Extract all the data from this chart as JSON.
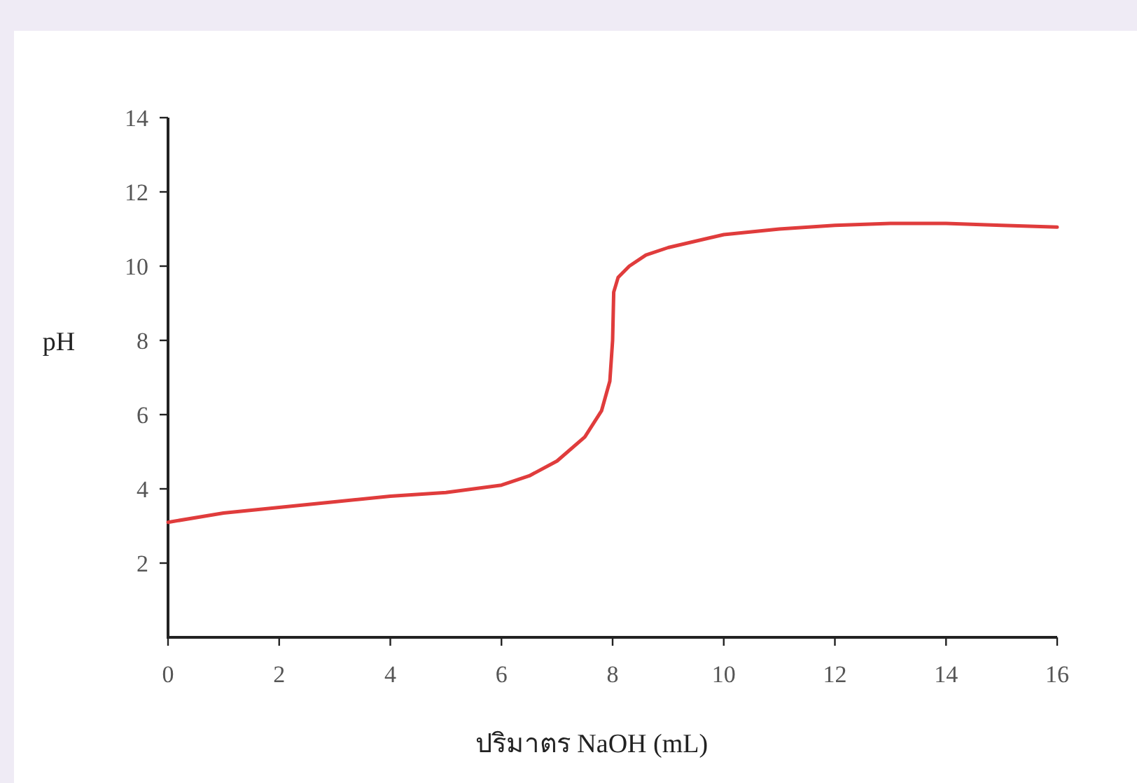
{
  "chart_data": {
    "type": "line",
    "xlabel": "ปริมาตร NaOH (mL)",
    "ylabel": "pH",
    "xlim": [
      0,
      16
    ],
    "ylim": [
      0,
      14
    ],
    "xticks": [
      0,
      2,
      4,
      6,
      8,
      10,
      12,
      14,
      16
    ],
    "yticks": [
      2,
      4,
      6,
      8,
      10,
      12,
      14
    ],
    "grid": false,
    "marker": "none",
    "line_style": "solid",
    "series": [
      {
        "color": "#e03c3c",
        "x": [
          0,
          1,
          2,
          3,
          4,
          5,
          6,
          6.5,
          7,
          7.5,
          7.8,
          7.95,
          8.0,
          8.02,
          8.1,
          8.3,
          8.6,
          9,
          10,
          11,
          12,
          13,
          14,
          15,
          16
        ],
        "values": [
          3.1,
          3.35,
          3.5,
          3.65,
          3.8,
          3.9,
          4.1,
          4.35,
          4.75,
          5.4,
          6.1,
          6.9,
          8.0,
          9.3,
          9.7,
          10.0,
          10.3,
          10.5,
          10.85,
          11.0,
          11.1,
          11.15,
          11.15,
          11.1,
          11.05
        ]
      }
    ]
  }
}
